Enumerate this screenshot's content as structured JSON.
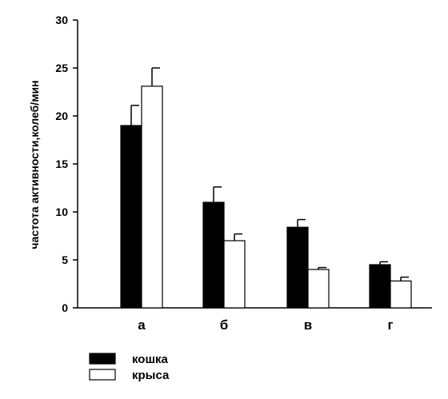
{
  "chart_data": {
    "type": "bar",
    "title": "",
    "xlabel": "",
    "ylabel": "частота активности,колеб/мин",
    "ylim": [
      0,
      30
    ],
    "yticks": [
      0,
      5,
      10,
      15,
      20,
      25,
      30
    ],
    "categories": [
      "а",
      "б",
      "в",
      "г"
    ],
    "series": [
      {
        "name": "кошка",
        "color": "#000000",
        "values": [
          19,
          11,
          8.4,
          4.5
        ],
        "errors": [
          2.1,
          1.6,
          0.8,
          0.3
        ]
      },
      {
        "name": "крыса",
        "color": "#ffffff",
        "values": [
          23.1,
          7,
          4,
          2.8
        ],
        "errors": [
          1.9,
          0.7,
          0.2,
          0.4
        ]
      }
    ],
    "error_bars": "upper",
    "grid": false,
    "legend": "bottom-left"
  }
}
